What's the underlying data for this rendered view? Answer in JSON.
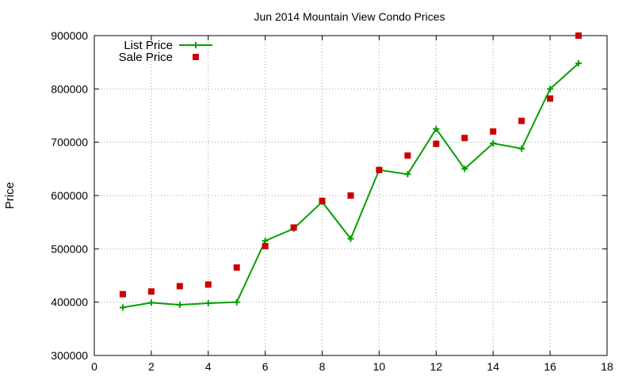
{
  "chart_data": {
    "type": "line",
    "title": "Jun 2014 Mountain View Condo Prices",
    "xlabel": "",
    "ylabel": "Price",
    "xlim": [
      0,
      18
    ],
    "ylim": [
      300000,
      900000
    ],
    "x_ticks": [
      0,
      2,
      4,
      6,
      8,
      10,
      12,
      14,
      16,
      18
    ],
    "y_ticks": [
      300000,
      400000,
      500000,
      600000,
      700000,
      800000,
      900000
    ],
    "grid": true,
    "legend_position": "top-left",
    "series": [
      {
        "name": "List Price",
        "style": "line-with-plus-markers",
        "color": "#00a000",
        "x": [
          1,
          2,
          3,
          4,
          5,
          6,
          7,
          8,
          9,
          10,
          11,
          12,
          13,
          14,
          15,
          16,
          17
        ],
        "y": [
          390000,
          399000,
          395000,
          398000,
          400000,
          515000,
          538000,
          588000,
          519000,
          648000,
          640000,
          725000,
          650000,
          698000,
          688000,
          800000,
          848000
        ]
      },
      {
        "name": "Sale Price",
        "style": "square-markers",
        "color": "#cc0000",
        "x": [
          1,
          2,
          3,
          4,
          5,
          6,
          7,
          8,
          9,
          10,
          11,
          12,
          13,
          14,
          15,
          16,
          17
        ],
        "y": [
          415000,
          420000,
          430000,
          433000,
          465000,
          505000,
          540000,
          590000,
          600000,
          648000,
          675000,
          697000,
          708000,
          720000,
          740000,
          782000,
          900000
        ]
      }
    ]
  }
}
